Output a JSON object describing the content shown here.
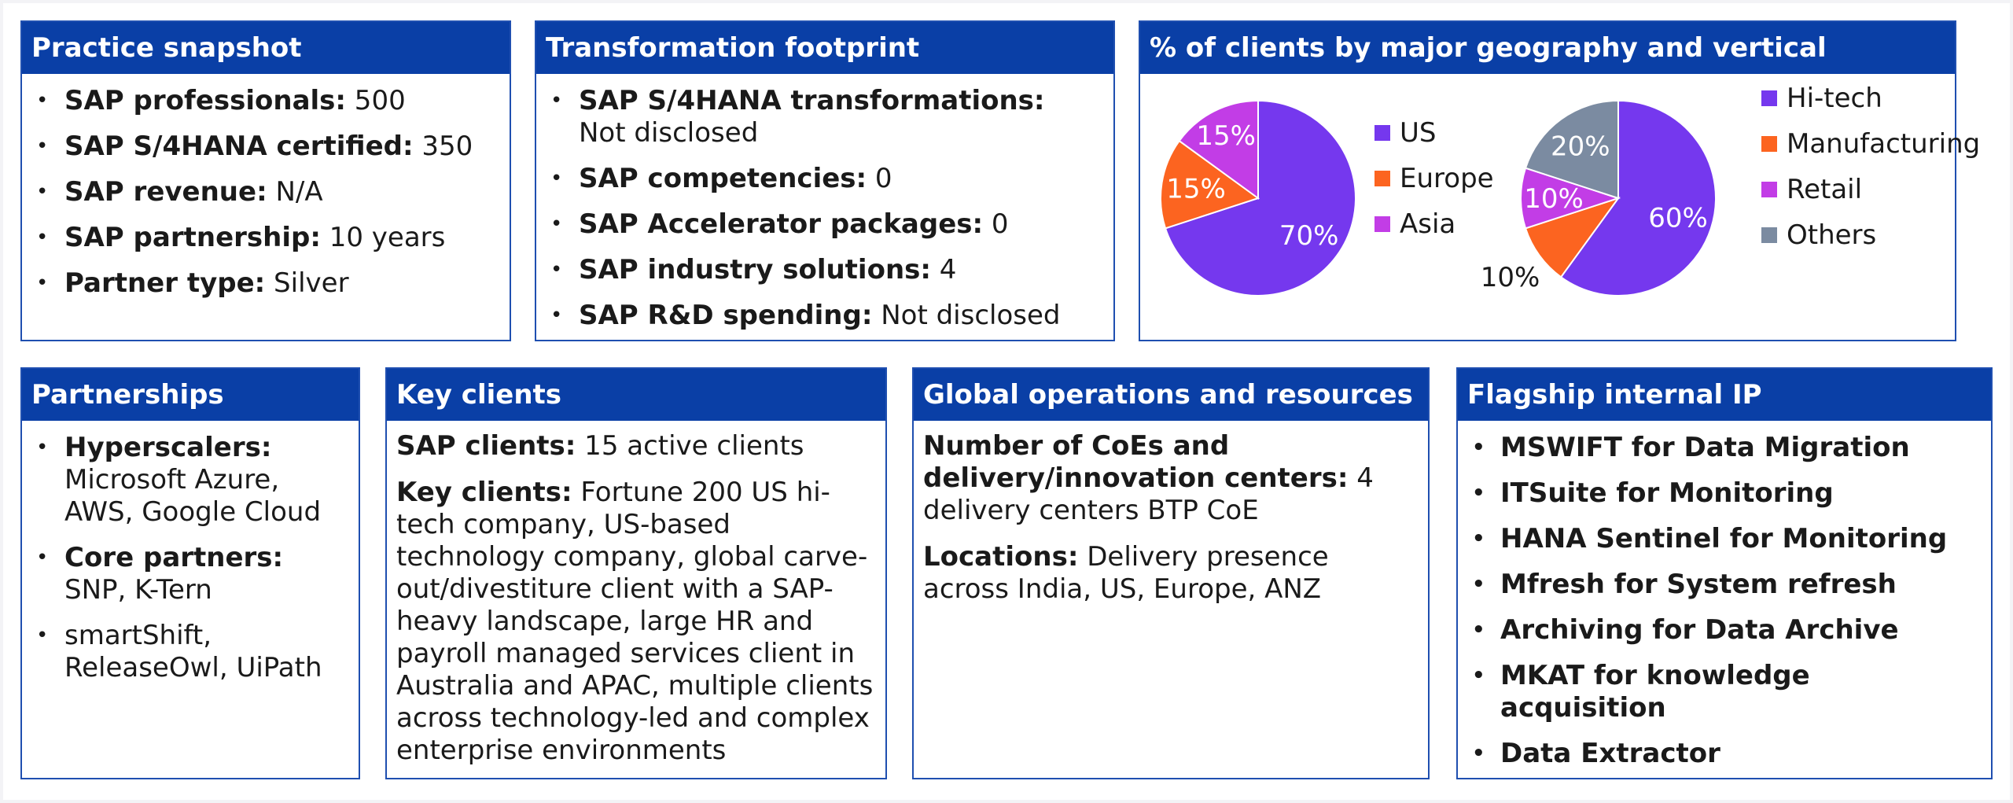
{
  "practice_snapshot": {
    "title": "Practice snapshot",
    "items": [
      {
        "label": "SAP professionals:",
        "value": " 500"
      },
      {
        "label": "SAP S/4HANA certified:",
        "value": " 350"
      },
      {
        "label": "SAP revenue:",
        "value": " N/A"
      },
      {
        "label": "SAP partnership:",
        "value": " 10 years"
      },
      {
        "label": "Partner type:",
        "value": " Silver"
      }
    ]
  },
  "transformation_footprint": {
    "title": "Transformation footprint",
    "items": [
      {
        "label": "SAP S/4HANA transformations:",
        "value": " Not disclosed"
      },
      {
        "label": "SAP competencies:",
        "value": " 0"
      },
      {
        "label": "SAP Accelerator packages:",
        "value": " 0"
      },
      {
        "label": "SAP industry solutions:",
        "value": " 4"
      },
      {
        "label": "SAP R&D spending:",
        "value": " Not disclosed"
      }
    ]
  },
  "geography_vertical": {
    "title": "% of clients by major geography and vertical"
  },
  "chart_data": [
    {
      "type": "pie",
      "title": "",
      "categories": [
        "US",
        "Europe",
        "Asia"
      ],
      "values": [
        70,
        15,
        15
      ],
      "labels": [
        "70%",
        "15%",
        "15%"
      ],
      "colors": [
        "#7538ee",
        "#fc6420",
        "#c23de6"
      ],
      "legend": "right"
    },
    {
      "type": "pie",
      "title": "",
      "categories": [
        "Hi-tech",
        "Manufacturing",
        "Retail",
        "Others"
      ],
      "values": [
        60,
        10,
        10,
        20
      ],
      "labels": [
        "60%",
        "10%",
        "10%",
        "20%"
      ],
      "colors": [
        "#7538ee",
        "#fc6420",
        "#c23de6",
        "#7b8ba1"
      ],
      "legend": "right"
    }
  ],
  "partnerships": {
    "title": "Partnerships",
    "items": [
      {
        "label": "Hyperscalers:",
        "value": "Microsoft Azure, AWS, Google Cloud"
      },
      {
        "label": "Core partners:",
        "value": "SNP, K-Tern"
      },
      {
        "label": "",
        "value": "smartShift, ReleaseOwl, UiPath"
      }
    ]
  },
  "key_clients": {
    "title": "Key clients",
    "sap_clients_label": "SAP clients:",
    "sap_clients_value": " 15 active clients",
    "key_clients_label": "Key clients:",
    "key_clients_value": " Fortune 200 US hi-tech company, US-based technology company, global carve-out/divestiture client with a SAP-heavy landscape, large HR and payroll managed services client in Australia and APAC, multiple clients across technology-led and complex enterprise environments"
  },
  "global_operations": {
    "title": "Global operations and resources",
    "centers_label": "Number of CoEs and delivery/innovation centers:",
    "centers_value": " 4 delivery centers BTP CoE",
    "locations_label": "Locations:",
    "locations_value": " Delivery presence across India, US, Europe, ANZ"
  },
  "flagship_ip": {
    "title": "Flagship internal IP",
    "items": [
      "MSWIFT for Data Migration",
      "ITSuite for Monitoring",
      "HANA Sentinel for Monitoring",
      "Mfresh for System refresh",
      "Archiving for Data Archive",
      "MKAT for knowledge acquisition",
      "Data Extractor"
    ]
  }
}
